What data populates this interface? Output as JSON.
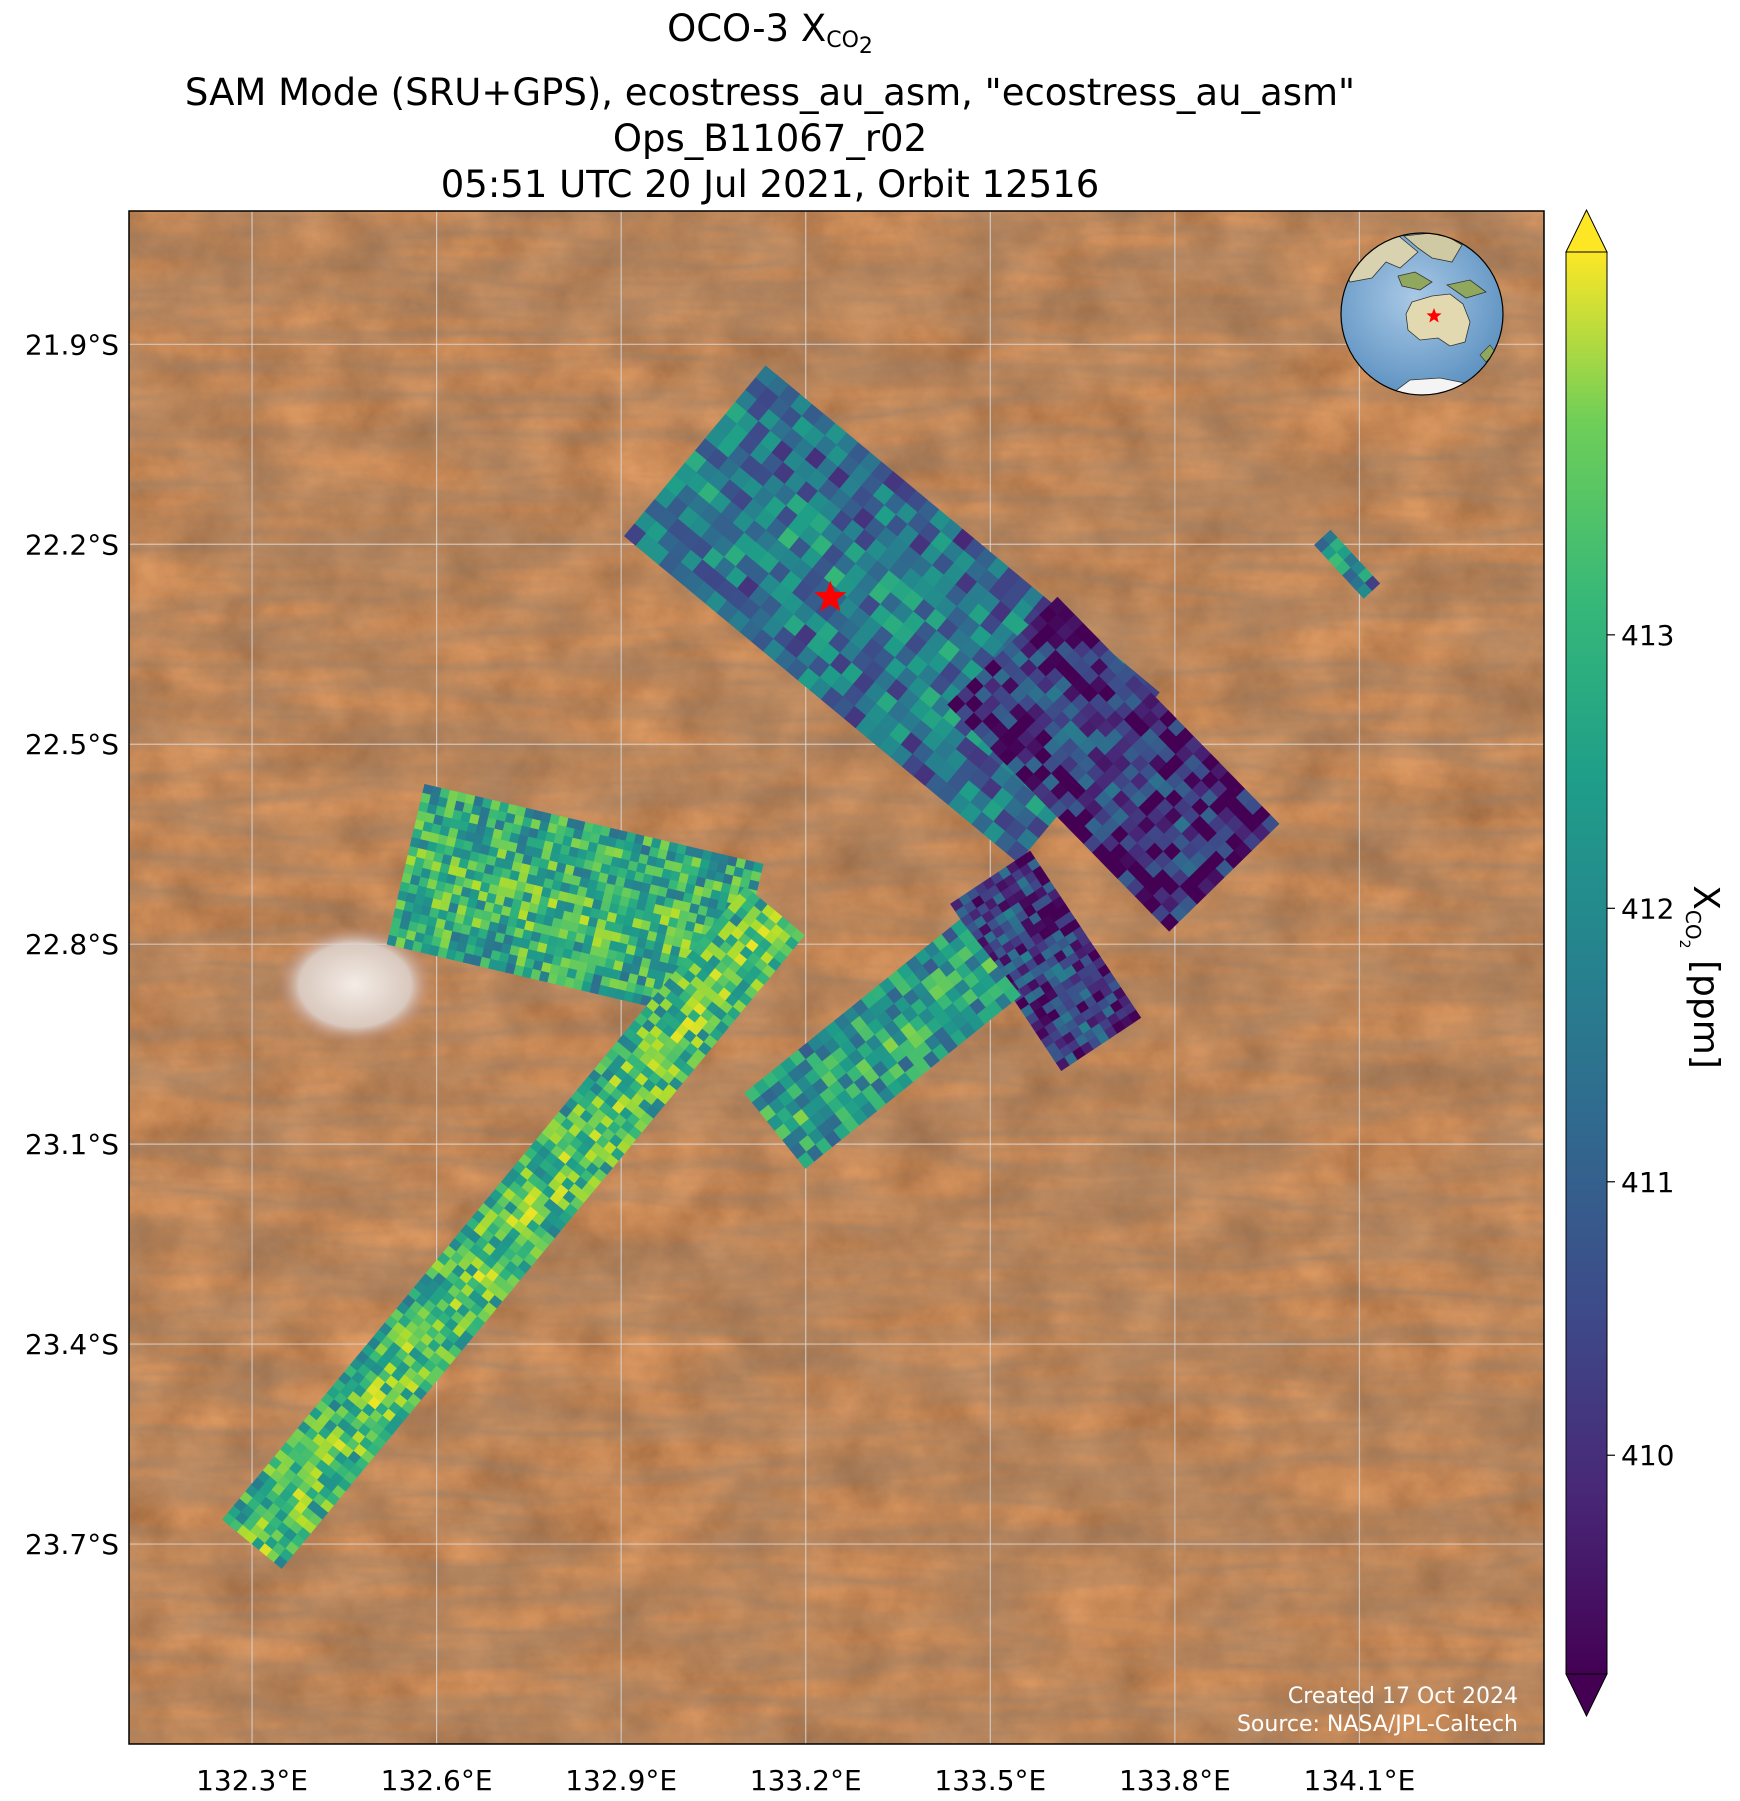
{
  "title": {
    "line1_main": "OCO-3 X",
    "line1_sub": "CO",
    "line1_subsub": "2",
    "line2": "SAM Mode (SRU+GPS), ecostress_au_asm, \"ecostress_au_asm\"",
    "line3": "Ops_B11067_r02",
    "line4": "05:51 UTC 20 Jul 2021, Orbit 12516"
  },
  "map": {
    "lon_range": [
      132.1,
      134.4
    ],
    "lat_range": [
      -24.0,
      -21.7
    ],
    "lon_ticks": [
      {
        "value": 132.3,
        "label": "132.3°E"
      },
      {
        "value": 132.6,
        "label": "132.6°E"
      },
      {
        "value": 132.9,
        "label": "132.9°E"
      },
      {
        "value": 133.2,
        "label": "133.2°E"
      },
      {
        "value": 133.5,
        "label": "133.5°E"
      },
      {
        "value": 133.8,
        "label": "133.8°E"
      },
      {
        "value": 134.1,
        "label": "134.1°E"
      }
    ],
    "lat_ticks": [
      {
        "value": -21.9,
        "label": "21.9°S"
      },
      {
        "value": -22.2,
        "label": "22.2°S"
      },
      {
        "value": -22.5,
        "label": "22.5°S"
      },
      {
        "value": -22.8,
        "label": "22.8°S"
      },
      {
        "value": -23.1,
        "label": "23.1°S"
      },
      {
        "value": -23.4,
        "label": "23.4°S"
      },
      {
        "value": -23.7,
        "label": "23.7°S"
      }
    ],
    "grid": true,
    "basemap": "satellite imagery, central Australian desert",
    "target_marker": {
      "lon": 133.24,
      "lat": -22.28,
      "icon": "red-star-icon",
      "color": "#ff0000"
    },
    "inset_globe": {
      "placement": "top-right",
      "icon": "globe-icon",
      "marker_icon": "red-star-icon"
    }
  },
  "colorbar": {
    "label_main": "X",
    "label_sub": "CO",
    "label_subsub": "2",
    "label_units": "[ppm]",
    "vmin": 409.2,
    "vmax": 414.4,
    "extend": "both",
    "colormap": "viridis",
    "ticks": [
      410,
      411,
      412,
      413
    ]
  },
  "chart_data": {
    "type": "heatmap",
    "quantity": "XCO2 [ppm]",
    "swaths": [
      {
        "name": "north-central",
        "center_start": [
          133.02,
          -22.06
        ],
        "center_end": [
          133.66,
          -22.55
        ],
        "length_cells": 34,
        "width_cells": 14,
        "mean_ppm": 411.5
      },
      {
        "name": "northeast-small",
        "center_start": [
          134.04,
          -22.19
        ],
        "center_end": [
          134.12,
          -22.27
        ],
        "length_cells": 7,
        "width_cells": 2,
        "mean_ppm": 412.0
      },
      {
        "name": "east-mid",
        "center_start": [
          133.52,
          -22.36
        ],
        "center_end": [
          133.88,
          -22.7
        ],
        "length_cells": 26,
        "width_cells": 12,
        "mean_ppm": 410.2
      },
      {
        "name": "east-lower",
        "center_start": [
          133.5,
          -22.7
        ],
        "center_end": [
          133.68,
          -22.95
        ],
        "length_cells": 22,
        "width_cells": 10,
        "mean_ppm": 410.4
      },
      {
        "name": "west-wing",
        "center_start": [
          132.55,
          -22.68
        ],
        "center_end": [
          133.1,
          -22.8
        ],
        "length_cells": 40,
        "width_cells": 18,
        "mean_ppm": 412.8
      },
      {
        "name": "long-southwest",
        "center_start": [
          132.3,
          -23.7
        ],
        "center_end": [
          133.15,
          -22.75
        ],
        "length_cells": 90,
        "width_cells": 8,
        "mean_ppm": 413.1
      },
      {
        "name": "south-east-small",
        "center_start": [
          133.15,
          -23.08
        ],
        "center_end": [
          133.5,
          -22.82
        ],
        "length_cells": 24,
        "width_cells": 8,
        "mean_ppm": 412.3
      }
    ],
    "target": {
      "lon": 133.24,
      "lat": -22.28
    }
  },
  "credits": {
    "created": "Created 17 Oct 2024",
    "source": "Source: NASA/JPL-Caltech"
  }
}
